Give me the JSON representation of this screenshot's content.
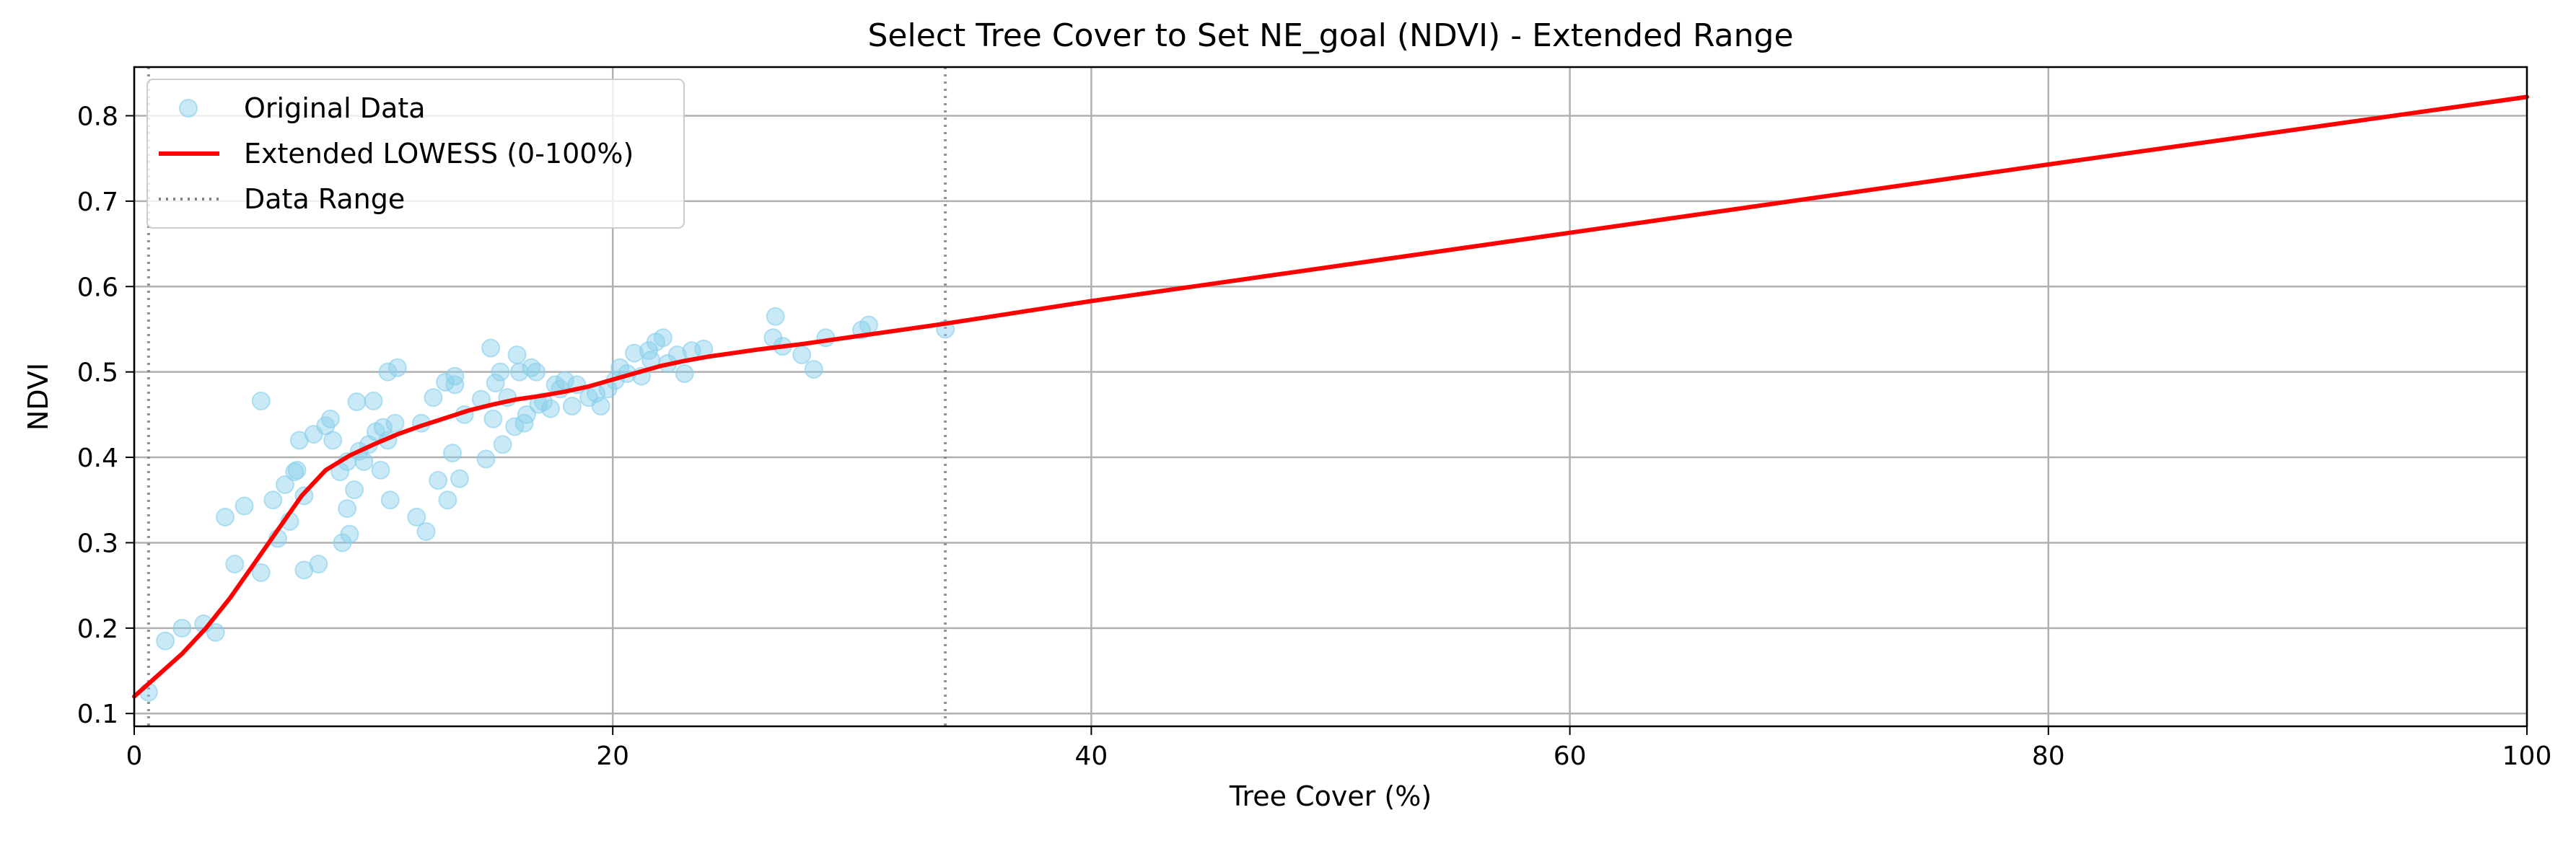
{
  "chart_data": {
    "type": "scatter",
    "title": "Select Tree Cover to Set NE_goal (NDVI) - Extended Range",
    "xlabel": "Tree Cover (%)",
    "ylabel": "NDVI",
    "xlim": [
      0,
      100
    ],
    "ylim": [
      0.085,
      0.857
    ],
    "xticks": [
      0,
      20,
      40,
      60,
      80,
      100
    ],
    "yticks": [
      0.1,
      0.2,
      0.3,
      0.4,
      0.5,
      0.6,
      0.7,
      0.8
    ],
    "grid": true,
    "legend_position": "top-left",
    "legend": [
      "Original Data",
      "Extended LOWESS (0-100%)",
      "Data Range"
    ],
    "colors": {
      "points": "#87ceeb",
      "lowess": "#ff0000",
      "range": "#808080",
      "grid": "#b0b0b0"
    },
    "series": [
      {
        "name": "Original Data",
        "type": "scatter",
        "points": [
          [
            0.6,
            0.125
          ],
          [
            1.3,
            0.185
          ],
          [
            2.0,
            0.2
          ],
          [
            2.9,
            0.205
          ],
          [
            3.4,
            0.195
          ],
          [
            3.8,
            0.33
          ],
          [
            4.2,
            0.275
          ],
          [
            4.6,
            0.343
          ],
          [
            5.3,
            0.466
          ],
          [
            5.3,
            0.265
          ],
          [
            5.8,
            0.35
          ],
          [
            6.0,
            0.305
          ],
          [
            6.3,
            0.368
          ],
          [
            6.5,
            0.325
          ],
          [
            6.7,
            0.383
          ],
          [
            6.8,
            0.385
          ],
          [
            6.9,
            0.42
          ],
          [
            7.1,
            0.355
          ],
          [
            7.1,
            0.268
          ],
          [
            7.5,
            0.427
          ],
          [
            7.7,
            0.275
          ],
          [
            8.0,
            0.437
          ],
          [
            8.2,
            0.445
          ],
          [
            8.3,
            0.42
          ],
          [
            8.6,
            0.383
          ],
          [
            8.7,
            0.3
          ],
          [
            8.9,
            0.395
          ],
          [
            8.9,
            0.34
          ],
          [
            9.0,
            0.31
          ],
          [
            9.2,
            0.362
          ],
          [
            9.3,
            0.465
          ],
          [
            9.4,
            0.407
          ],
          [
            9.6,
            0.395
          ],
          [
            9.8,
            0.415
          ],
          [
            10.0,
            0.466
          ],
          [
            10.1,
            0.43
          ],
          [
            10.3,
            0.385
          ],
          [
            10.4,
            0.435
          ],
          [
            10.6,
            0.5
          ],
          [
            10.6,
            0.42
          ],
          [
            10.7,
            0.35
          ],
          [
            10.9,
            0.44
          ],
          [
            11.0,
            0.505
          ],
          [
            11.8,
            0.33
          ],
          [
            12.0,
            0.44
          ],
          [
            12.2,
            0.313
          ],
          [
            12.5,
            0.47
          ],
          [
            12.7,
            0.373
          ],
          [
            13.0,
            0.488
          ],
          [
            13.1,
            0.35
          ],
          [
            13.3,
            0.405
          ],
          [
            13.4,
            0.495
          ],
          [
            13.4,
            0.485
          ],
          [
            13.6,
            0.375
          ],
          [
            13.8,
            0.45
          ],
          [
            14.5,
            0.468
          ],
          [
            14.7,
            0.398
          ],
          [
            14.9,
            0.528
          ],
          [
            15.0,
            0.445
          ],
          [
            15.1,
            0.487
          ],
          [
            15.3,
            0.5
          ],
          [
            15.4,
            0.415
          ],
          [
            15.6,
            0.47
          ],
          [
            15.9,
            0.436
          ],
          [
            16.0,
            0.52
          ],
          [
            16.1,
            0.5
          ],
          [
            16.3,
            0.44
          ],
          [
            16.4,
            0.45
          ],
          [
            16.6,
            0.505
          ],
          [
            16.8,
            0.5
          ],
          [
            16.9,
            0.462
          ],
          [
            17.1,
            0.465
          ],
          [
            17.4,
            0.457
          ],
          [
            17.6,
            0.485
          ],
          [
            17.8,
            0.48
          ],
          [
            18.0,
            0.49
          ],
          [
            18.3,
            0.46
          ],
          [
            18.5,
            0.485
          ],
          [
            19.0,
            0.47
          ],
          [
            19.3,
            0.475
          ],
          [
            19.5,
            0.46
          ],
          [
            19.8,
            0.48
          ],
          [
            20.1,
            0.49
          ],
          [
            20.3,
            0.505
          ],
          [
            20.6,
            0.498
          ],
          [
            20.9,
            0.522
          ],
          [
            21.2,
            0.495
          ],
          [
            21.5,
            0.525
          ],
          [
            21.6,
            0.514
          ],
          [
            21.8,
            0.535
          ],
          [
            22.1,
            0.54
          ],
          [
            22.3,
            0.51
          ],
          [
            22.7,
            0.52
          ],
          [
            23.0,
            0.498
          ],
          [
            23.3,
            0.525
          ],
          [
            23.8,
            0.527
          ],
          [
            26.7,
            0.54
          ],
          [
            26.8,
            0.565
          ],
          [
            27.1,
            0.53
          ],
          [
            27.9,
            0.52
          ],
          [
            28.4,
            0.503
          ],
          [
            28.9,
            0.54
          ],
          [
            30.4,
            0.549
          ],
          [
            30.7,
            0.555
          ],
          [
            33.9,
            0.55
          ]
        ]
      },
      {
        "name": "Extended LOWESS (0-100%)",
        "type": "line",
        "points": [
          [
            0,
            0.12
          ],
          [
            1,
            0.145
          ],
          [
            2,
            0.17
          ],
          [
            3,
            0.2
          ],
          [
            4,
            0.235
          ],
          [
            5,
            0.275
          ],
          [
            6,
            0.315
          ],
          [
            7,
            0.355
          ],
          [
            8,
            0.385
          ],
          [
            9,
            0.402
          ],
          [
            10,
            0.415
          ],
          [
            11,
            0.427
          ],
          [
            12,
            0.437
          ],
          [
            13,
            0.446
          ],
          [
            14,
            0.455
          ],
          [
            15,
            0.462
          ],
          [
            16,
            0.468
          ],
          [
            17,
            0.472
          ],
          [
            18,
            0.477
          ],
          [
            19,
            0.483
          ],
          [
            20,
            0.491
          ],
          [
            21,
            0.499
          ],
          [
            22,
            0.507
          ],
          [
            23,
            0.513
          ],
          [
            24,
            0.518
          ],
          [
            26,
            0.526
          ],
          [
            28,
            0.533
          ],
          [
            30,
            0.541
          ],
          [
            32,
            0.549
          ],
          [
            34,
            0.557
          ],
          [
            40,
            0.583
          ],
          [
            60,
            0.663
          ],
          [
            80,
            0.743
          ],
          [
            100,
            0.822
          ]
        ]
      }
    ],
    "reference_lines": [
      {
        "name": "Data Range",
        "x": 0.6
      },
      {
        "name": "Data Range",
        "x": 33.9
      }
    ]
  }
}
